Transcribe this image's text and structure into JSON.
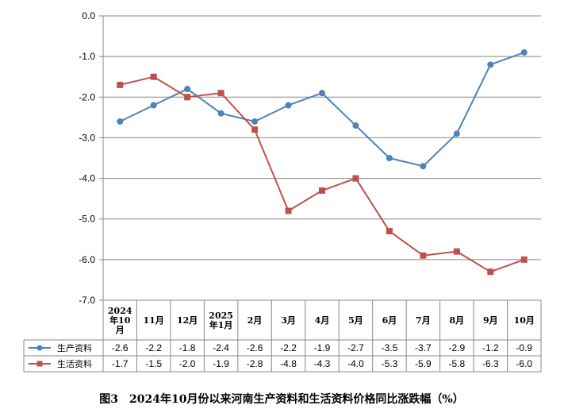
{
  "chart_data": {
    "type": "line",
    "title": "图3　2024年10月份以来河南生产资料和生活资料价格同比涨跌幅（%）",
    "categories": [
      "2024\n年10\n月",
      "11月",
      "12月",
      "2025\n年1月",
      "2月",
      "3月",
      "4月",
      "5月",
      "6月",
      "7月",
      "8月",
      "9月",
      "10月"
    ],
    "ylim": [
      -7.0,
      0.0
    ],
    "yticks": [
      "0.0",
      "-1.0",
      "-2.0",
      "-3.0",
      "-4.0",
      "-5.0",
      "-6.0",
      "-7.0"
    ],
    "grid": true,
    "series": [
      {
        "name": "生产资料",
        "color": "#4f81bd",
        "marker": "circle",
        "values": [
          -2.6,
          -2.2,
          -1.8,
          -2.4,
          -2.6,
          -2.2,
          -1.9,
          -2.7,
          -3.5,
          -3.7,
          -2.9,
          -1.2,
          -0.9
        ],
        "labels": [
          "-2.6",
          "-2.2",
          "-1.8",
          "-2.4",
          "-2.6",
          "-2.2",
          "-1.9",
          "-2.7",
          "-3.5",
          "-3.7",
          "-2.9",
          "-1.2",
          "-0.9"
        ]
      },
      {
        "name": "生活资料",
        "color": "#c0504d",
        "marker": "square",
        "values": [
          -1.7,
          -1.5,
          -2.0,
          -1.9,
          -2.8,
          -4.8,
          -4.3,
          -4.0,
          -5.3,
          -5.9,
          -5.8,
          -6.3,
          -6.0
        ],
        "labels": [
          "-1.7",
          "-1.5",
          "-2.0",
          "-1.9",
          "-2.8",
          "-4.8",
          "-4.3",
          "-4.0",
          "-5.3",
          "-5.9",
          "-5.8",
          "-6.3",
          "-6.0"
        ]
      }
    ]
  }
}
